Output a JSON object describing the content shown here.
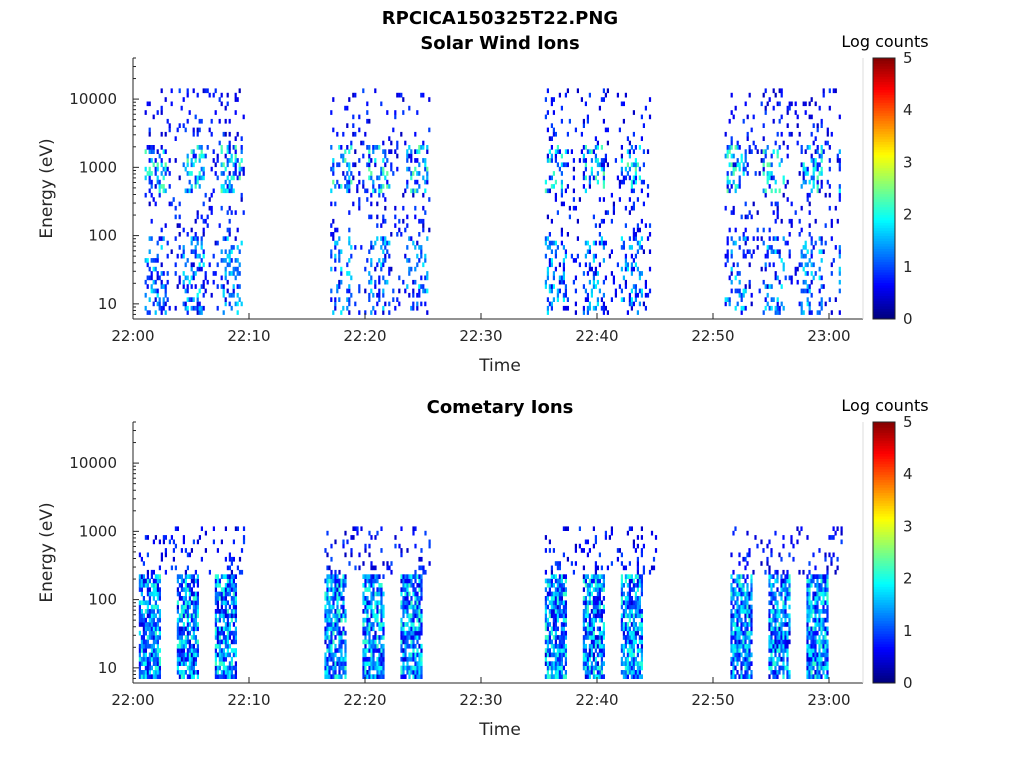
{
  "figure_title": "RPCICA150325T22.PNG",
  "chart_data": [
    {
      "type": "heatmap",
      "title": "Solar Wind Ions",
      "xlabel": "Time",
      "ylabel": "Energy (eV)",
      "xlim_minutes_after_2200": [
        0,
        63
      ],
      "ylim": [
        6,
        40000
      ],
      "yscale": "log",
      "x_ticks": [
        "22:00",
        "22:10",
        "22:20",
        "22:30",
        "22:40",
        "22:50",
        "23:00"
      ],
      "y_ticks": [
        "10",
        "100",
        "1000",
        "10000"
      ],
      "colorbar": {
        "label": "Log counts",
        "range": [
          0,
          5
        ],
        "ticks": [
          "0",
          "1",
          "2",
          "3",
          "4",
          "5"
        ],
        "colormap": "jet"
      },
      "bursts_minutes": [
        [
          1,
          9.5
        ],
        [
          17,
          25.5
        ],
        [
          35.5,
          44.5
        ],
        [
          51,
          61
        ]
      ],
      "profile": {
        "dense_energy": [
          400,
          2200
        ],
        "dense_prob": 0.35,
        "low_energy": [
          7,
          100
        ],
        "low_prob": 0.3,
        "sparse_energy": [
          7,
          15000
        ],
        "sparse_prob": 0.1,
        "peak_log_counts": 2.0
      }
    },
    {
      "type": "heatmap",
      "title": "Cometary Ions",
      "xlabel": "Time",
      "ylabel": "Energy (eV)",
      "xlim_minutes_after_2200": [
        0,
        63
      ],
      "ylim": [
        6,
        40000
      ],
      "yscale": "log",
      "x_ticks": [
        "22:00",
        "22:10",
        "22:20",
        "22:30",
        "22:40",
        "22:50",
        "23:00"
      ],
      "y_ticks": [
        "10",
        "100",
        "1000",
        "10000"
      ],
      "colorbar": {
        "label": "Log counts",
        "range": [
          0,
          5
        ],
        "ticks": [
          "0",
          "1",
          "2",
          "3",
          "4",
          "5"
        ],
        "colormap": "jet"
      },
      "bursts_minutes": [
        [
          0.5,
          9.5
        ],
        [
          16.5,
          25.5
        ],
        [
          35.5,
          45
        ],
        [
          51.5,
          61
        ]
      ],
      "profile": {
        "dense_energy": [
          7,
          250
        ],
        "dense_prob": 0.75,
        "low_energy": [
          7,
          40
        ],
        "low_prob": 0.8,
        "sparse_energy": [
          250,
          1200
        ],
        "sparse_prob": 0.12,
        "peak_log_counts": 3.0
      }
    }
  ]
}
